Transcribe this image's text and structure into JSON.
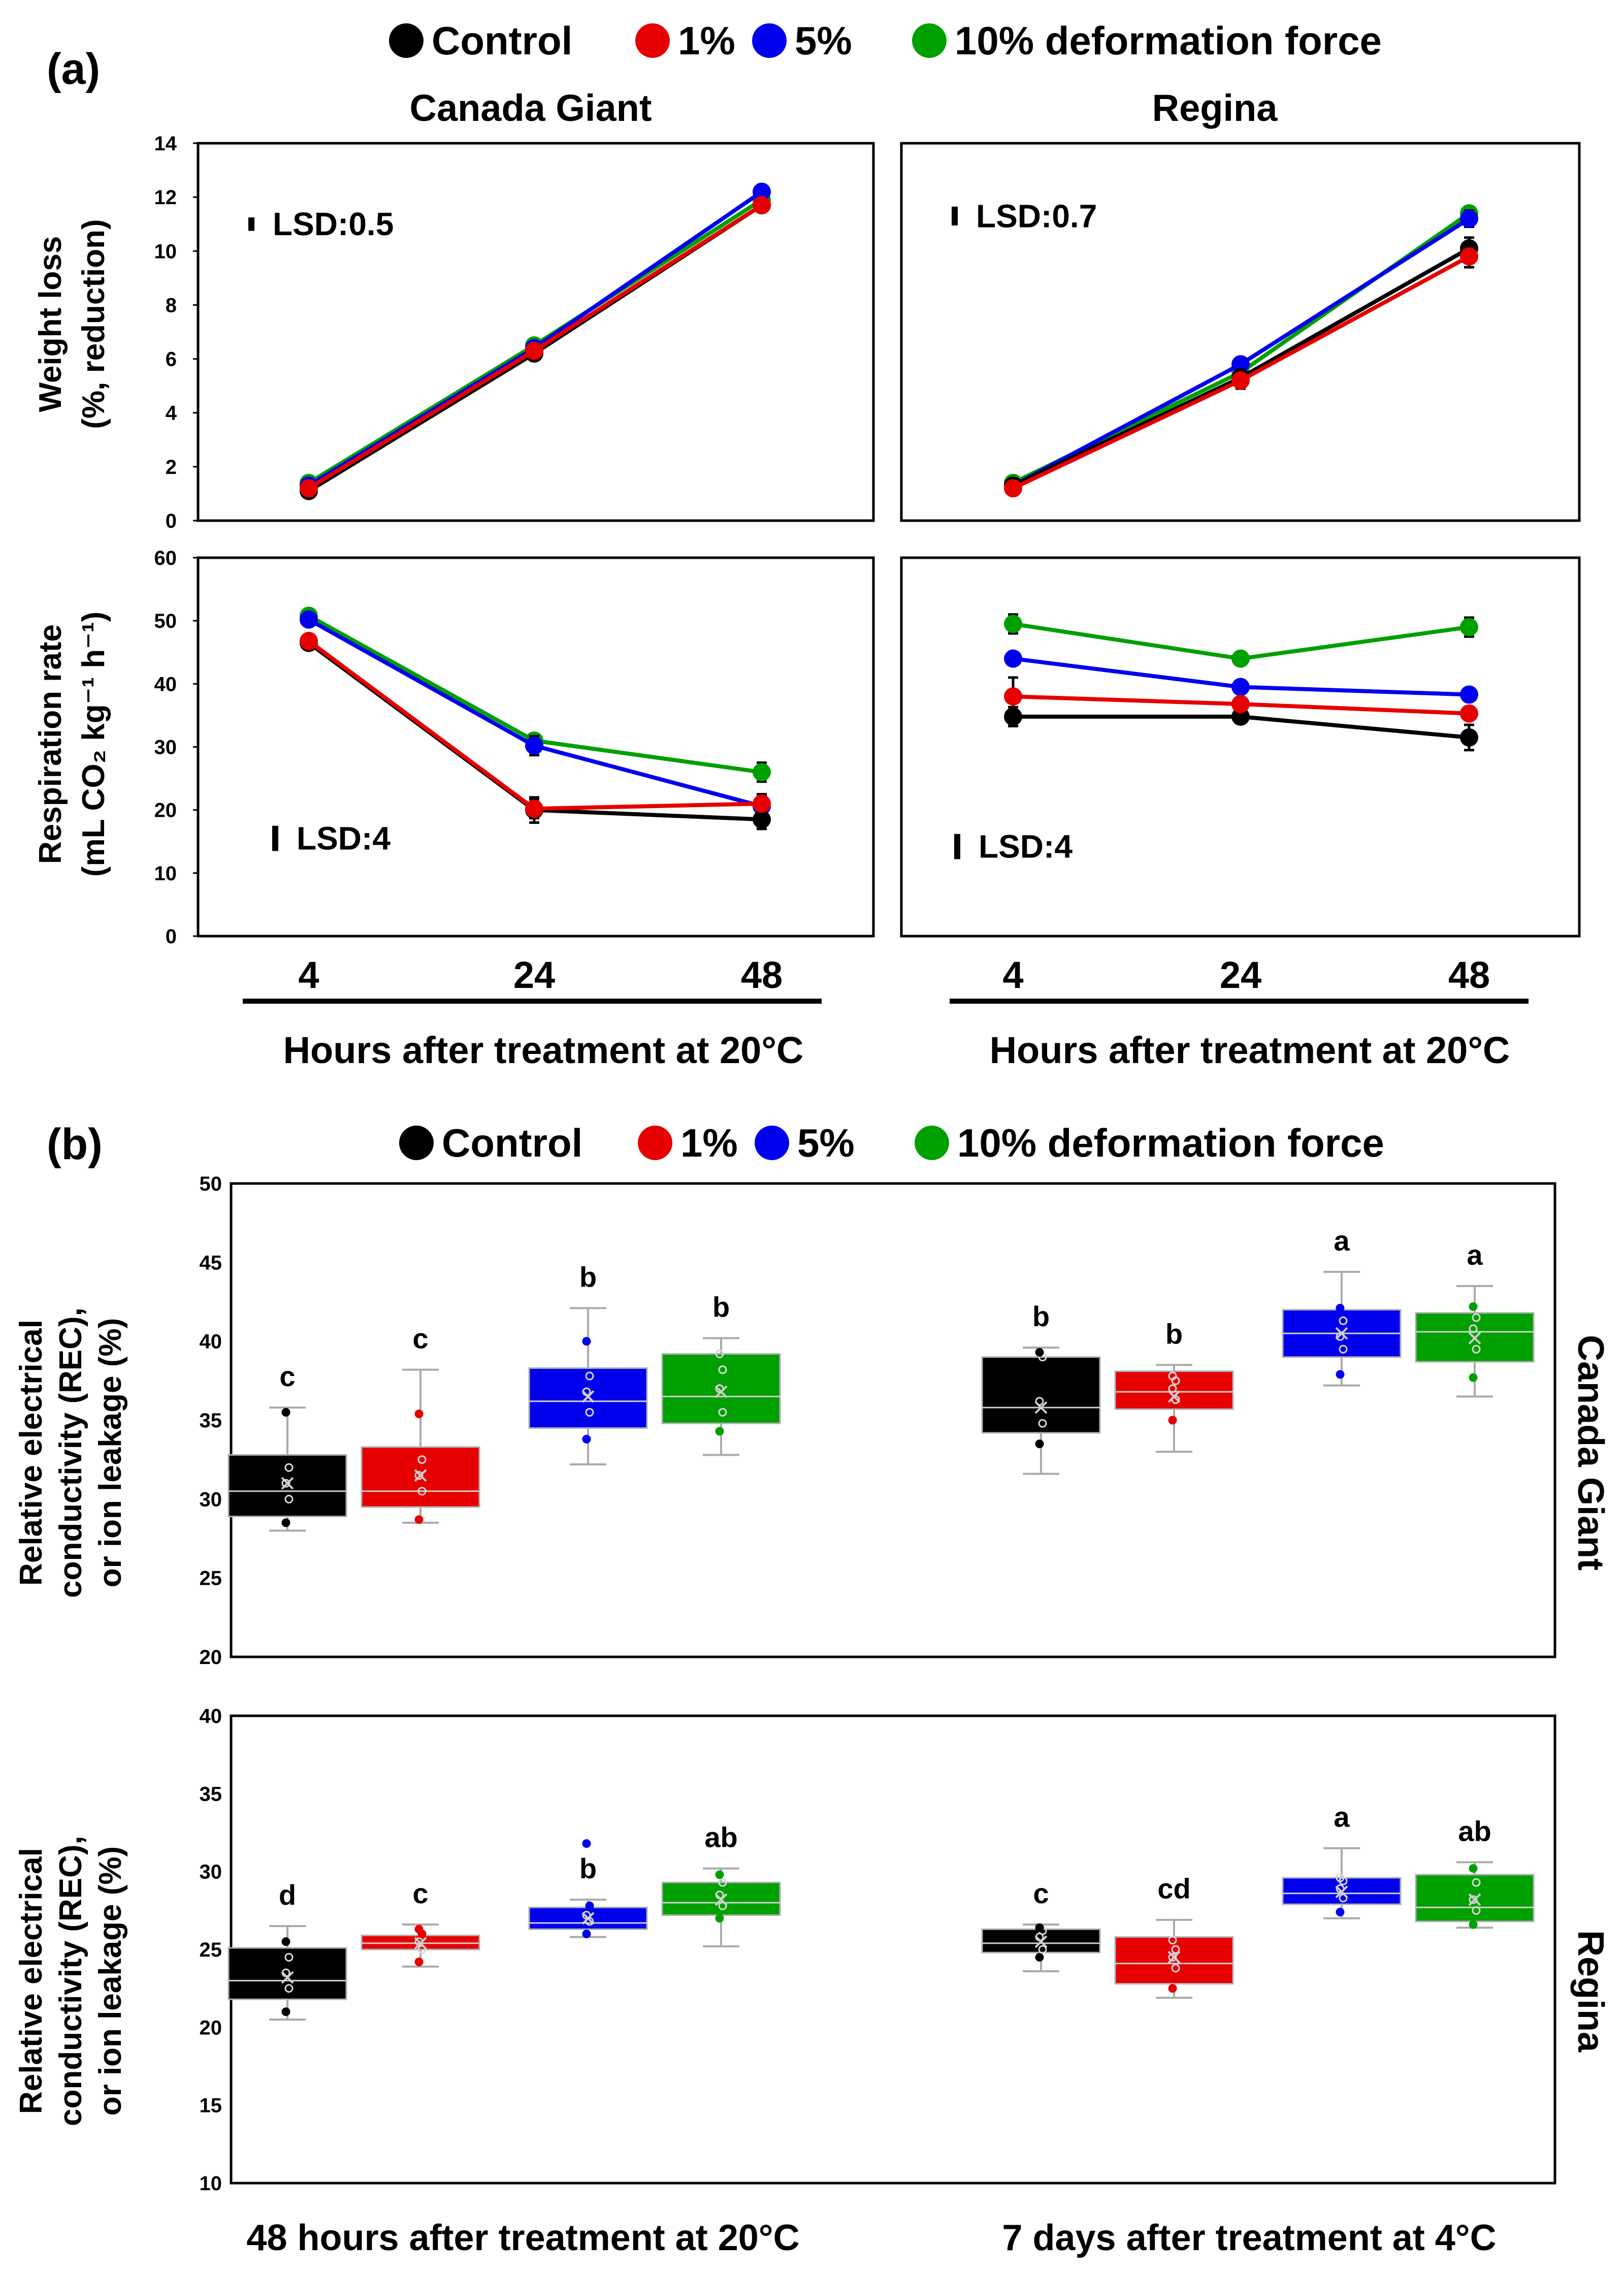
{
  "colors": {
    "Control": "#000000",
    "1%": "#e60000",
    "5%": "#0000ee",
    "10% deformation force": "#00a000"
  },
  "panel_a": {
    "label": "(a)",
    "legend": [
      "Control",
      "1%",
      "5%",
      "10% deformation force"
    ],
    "xlabel": "Hours after treatment at 20°C",
    "x_ticks": [
      "4",
      "24",
      "48"
    ]
  },
  "panel_b": {
    "label": "(b)",
    "legend": [
      "Control",
      "1%",
      "5%",
      "10% deformation force"
    ],
    "group_labels": [
      "48 hours after treatment at 20°C",
      "7 days after treatment at 4°C"
    ]
  },
  "chart_data": [
    {
      "id": "a-cg-wl",
      "type": "line",
      "title": "Canada Giant",
      "ylabel_lines": [
        "Weight loss",
        "(%, reduction)"
      ],
      "x": [
        4,
        24,
        48
      ],
      "ylim": [
        0,
        14
      ],
      "yticks": [
        0,
        2,
        4,
        6,
        8,
        10,
        12,
        14
      ],
      "lsd": "LSD:0.5",
      "lsd_value": 0.5,
      "series": [
        {
          "name": "Control",
          "values": [
            1.1,
            6.2,
            11.7
          ],
          "err": [
            0.15,
            0.2,
            0.2
          ]
        },
        {
          "name": "1%",
          "values": [
            1.2,
            6.3,
            11.7
          ],
          "err": [
            0.1,
            0.2,
            0.2
          ]
        },
        {
          "name": "5%",
          "values": [
            1.3,
            6.4,
            12.2
          ],
          "err": [
            0.1,
            0.2,
            0.2
          ]
        },
        {
          "name": "10% deformation force",
          "values": [
            1.4,
            6.5,
            11.9
          ],
          "err": [
            0.1,
            0.2,
            0.2
          ]
        }
      ]
    },
    {
      "id": "a-rg-wl",
      "type": "line",
      "title": "Regina",
      "x": [
        4,
        24,
        48
      ],
      "ylim": [
        0,
        14
      ],
      "lsd": "LSD:0.7",
      "lsd_value": 0.7,
      "series": [
        {
          "name": "Control",
          "values": [
            1.3,
            5.3,
            10.1
          ],
          "err": [
            0.1,
            0.3,
            0.4
          ]
        },
        {
          "name": "1%",
          "values": [
            1.2,
            5.2,
            9.8
          ],
          "err": [
            0.1,
            0.3,
            0.4
          ]
        },
        {
          "name": "5%",
          "values": [
            1.3,
            5.8,
            11.2
          ],
          "err": [
            0.1,
            0.2,
            0.3
          ]
        },
        {
          "name": "10% deformation force",
          "values": [
            1.4,
            5.5,
            11.4
          ],
          "err": [
            0.1,
            0.2,
            0.2
          ]
        }
      ]
    },
    {
      "id": "a-cg-rr",
      "type": "line",
      "ylabel_lines": [
        "Respiration rate",
        "(mL CO₂ kg⁻¹ h⁻¹)"
      ],
      "x": [
        4,
        24,
        48
      ],
      "ylim": [
        0,
        60
      ],
      "yticks": [
        0,
        10,
        20,
        30,
        40,
        50,
        60
      ],
      "lsd": "LSD:4",
      "lsd_value": 4,
      "series": [
        {
          "name": "Control",
          "values": [
            46.5,
            20.0,
            18.5
          ],
          "err": [
            1.0,
            2.0,
            1.5
          ]
        },
        {
          "name": "1%",
          "values": [
            46.8,
            20.2,
            21.0
          ],
          "err": [
            1.0,
            1.5,
            1.5
          ]
        },
        {
          "name": "5%",
          "values": [
            50.2,
            30.2,
            20.6
          ],
          "err": [
            1.0,
            1.5,
            1.5
          ]
        },
        {
          "name": "10% deformation force",
          "values": [
            50.8,
            31.0,
            26.0
          ],
          "err": [
            1.0,
            1.0,
            1.5
          ]
        }
      ]
    },
    {
      "id": "a-rg-rr",
      "type": "line",
      "x": [
        4,
        24,
        48
      ],
      "ylim": [
        0,
        60
      ],
      "lsd": "LSD:4",
      "lsd_value": 4,
      "series": [
        {
          "name": "Control",
          "values": [
            34.8,
            34.8,
            31.5
          ],
          "err": [
            1.5,
            1.0,
            2.0
          ]
        },
        {
          "name": "1%",
          "values": [
            38.0,
            36.8,
            35.3
          ],
          "err": [
            3.0,
            1.0,
            1.0
          ]
        },
        {
          "name": "5%",
          "values": [
            44.0,
            39.5,
            38.3
          ],
          "err": [
            1.0,
            1.0,
            1.0
          ]
        },
        {
          "name": "10% deformation force",
          "values": [
            49.5,
            44.0,
            49.0
          ],
          "err": [
            1.5,
            1.0,
            1.5
          ]
        }
      ]
    },
    {
      "id": "b-cg",
      "type": "box",
      "side_label": "Canada Giant",
      "ylabel_lines": [
        "Relative electrical",
        "conductivity (REC),",
        "or ion leakage (%)"
      ],
      "ylim": [
        20,
        50
      ],
      "yticks": [
        20,
        25,
        30,
        35,
        40,
        45,
        50
      ],
      "groups": [
        {
          "name": "48 hours after treatment at 20°C",
          "boxes": [
            {
              "series": "Control",
              "min": 28.0,
              "q1": 28.9,
              "median": 30.5,
              "q3": 32.8,
              "max": 35.8,
              "mean": 31.0,
              "letter": "c",
              "points": [
                28.5,
                30.0,
                31.0,
                32.0,
                35.5
              ]
            },
            {
              "series": "1%",
              "min": 28.5,
              "q1": 29.5,
              "median": 30.5,
              "q3": 33.3,
              "max": 38.2,
              "mean": 31.5,
              "letter": "c",
              "points": [
                28.7,
                30.5,
                31.5,
                32.5,
                35.4
              ]
            },
            {
              "series": "5%",
              "min": 32.2,
              "q1": 34.5,
              "median": 36.2,
              "q3": 38.3,
              "max": 42.1,
              "mean": 36.5,
              "letter": "b",
              "points": [
                33.8,
                35.5,
                36.8,
                37.8,
                40.0
              ]
            },
            {
              "series": "10% deformation force",
              "min": 32.8,
              "q1": 34.8,
              "median": 36.5,
              "q3": 39.2,
              "max": 40.2,
              "mean": 36.8,
              "letter": "b",
              "points": [
                34.3,
                35.5,
                37.0,
                38.2,
                39.2
              ]
            }
          ]
        },
        {
          "name": "7 days after treatment at 4°C",
          "boxes": [
            {
              "series": "Control",
              "min": 31.6,
              "q1": 34.2,
              "median": 35.8,
              "q3": 39.0,
              "max": 39.6,
              "mean": 35.8,
              "letter": "b",
              "points": [
                33.5,
                34.8,
                36.2,
                39.0,
                39.3
              ]
            },
            {
              "series": "1%",
              "min": 33.0,
              "q1": 35.7,
              "median": 36.8,
              "q3": 38.1,
              "max": 38.5,
              "mean": 36.5,
              "letter": "b",
              "points": [
                35.0,
                36.3,
                37.0,
                37.5,
                37.8
              ]
            },
            {
              "series": "5%",
              "min": 37.2,
              "q1": 39.0,
              "median": 40.5,
              "q3": 42.0,
              "max": 44.4,
              "mean": 40.5,
              "letter": "a",
              "points": [
                37.9,
                39.5,
                40.3,
                41.3,
                42.1
              ]
            },
            {
              "series": "10% deformation force",
              "min": 36.5,
              "q1": 38.7,
              "median": 40.6,
              "q3": 41.8,
              "max": 43.5,
              "mean": 40.2,
              "letter": "a",
              "points": [
                37.7,
                39.5,
                40.8,
                41.5,
                42.2
              ]
            }
          ]
        }
      ]
    },
    {
      "id": "b-rg",
      "type": "box",
      "side_label": "Regina",
      "ylabel_lines": [
        "Relative electrical",
        "conductivity (REC),",
        "or ion leakage (%)"
      ],
      "ylim": [
        10,
        40
      ],
      "yticks": [
        10,
        15,
        20,
        25,
        30,
        35,
        40
      ],
      "groups": [
        {
          "name": "48 hours after treatment at 20°C",
          "boxes": [
            {
              "series": "Control",
              "min": 20.5,
              "q1": 21.8,
              "median": 23.0,
              "q3": 25.1,
              "max": 26.5,
              "mean": 23.2,
              "letter": "d",
              "points": [
                21.0,
                22.5,
                23.5,
                24.5,
                25.5
              ]
            },
            {
              "series": "1%",
              "min": 23.9,
              "q1": 25.0,
              "median": 25.4,
              "q3": 25.9,
              "max": 26.6,
              "mean": 25.4,
              "letter": "c",
              "points": [
                24.2,
                25.0,
                25.5,
                26.0,
                26.3
              ]
            },
            {
              "series": "5%",
              "min": 25.8,
              "q1": 26.3,
              "median": 26.7,
              "q3": 27.7,
              "max": 28.2,
              "mean": 27.0,
              "letter": "b",
              "points": [
                26.0,
                26.8,
                27.2,
                27.8,
                31.8
              ]
            },
            {
              "series": "10% deformation force",
              "min": 25.2,
              "q1": 27.2,
              "median": 28.0,
              "q3": 29.3,
              "max": 30.2,
              "mean": 28.2,
              "letter": "ab",
              "points": [
                27.0,
                27.8,
                28.5,
                29.3,
                29.8
              ]
            }
          ]
        },
        {
          "name": "7 days after treatment at 4°C",
          "boxes": [
            {
              "series": "Control",
              "min": 23.6,
              "q1": 24.8,
              "median": 25.4,
              "q3": 26.3,
              "max": 26.6,
              "mean": 25.5,
              "letter": "c",
              "points": [
                24.5,
                25.0,
                25.8,
                26.2,
                26.4
              ]
            },
            {
              "series": "1%",
              "min": 21.9,
              "q1": 22.8,
              "median": 24.1,
              "q3": 25.8,
              "max": 26.9,
              "mean": 24.5,
              "letter": "cd",
              "points": [
                22.5,
                23.8,
                24.5,
                25.0,
                25.6
              ]
            },
            {
              "series": "5%",
              "min": 27.0,
              "q1": 27.9,
              "median": 28.6,
              "q3": 29.6,
              "max": 31.5,
              "mean": 28.7,
              "letter": "a",
              "points": [
                27.4,
                28.3,
                28.9,
                29.4,
                29.6
              ]
            },
            {
              "series": "10% deformation force",
              "min": 26.4,
              "q1": 26.8,
              "median": 27.7,
              "q3": 29.8,
              "max": 30.6,
              "mean": 28.2,
              "letter": "ab",
              "points": [
                26.6,
                27.5,
                28.2,
                29.3,
                30.2
              ]
            }
          ]
        }
      ]
    }
  ]
}
